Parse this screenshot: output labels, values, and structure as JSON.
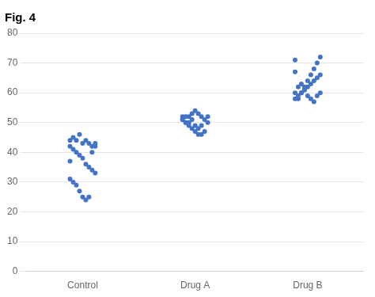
{
  "chart_data": {
    "type": "scatter",
    "title": "Fig. 4",
    "categories": [
      "Control",
      "Drug A",
      "Drug B"
    ],
    "values": [
      [
        44,
        45,
        44,
        46,
        43,
        44,
        43,
        42,
        43,
        42,
        41,
        40,
        39,
        38,
        36,
        35,
        34,
        33,
        31,
        30,
        29,
        27,
        25,
        24,
        25,
        40,
        42,
        37
      ],
      [
        51,
        50,
        52,
        53,
        54,
        53,
        52,
        51,
        52,
        52,
        50,
        49,
        48,
        47,
        46,
        46,
        47,
        50,
        51,
        52,
        50,
        51,
        49,
        48,
        49
      ],
      [
        58,
        59,
        60,
        61,
        62,
        63,
        64,
        65,
        66,
        67,
        58,
        60,
        62,
        64,
        66,
        68,
        70,
        72,
        60,
        62,
        63,
        61,
        59,
        58,
        57,
        59,
        60,
        71
      ]
    ],
    "color": "#4472C4",
    "ylim": [
      0,
      80
    ],
    "yticks": [
      0,
      10,
      20,
      30,
      40,
      50,
      60,
      70,
      80
    ],
    "grid": true
  }
}
